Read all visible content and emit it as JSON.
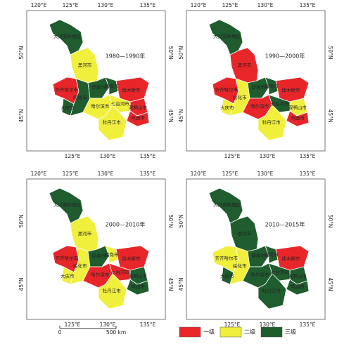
{
  "axes": {
    "top": [
      "120°E",
      "125°E",
      "130°E",
      "135°E"
    ],
    "bottom": [
      "125°E",
      "130°E",
      "135°E"
    ],
    "side": [
      "50°N",
      "45°N"
    ]
  },
  "panels": [
    {
      "period": "1980—1990年",
      "regions": [
        {
          "name": "大兴安岭地区",
          "level": "三级"
        },
        {
          "name": "黑河市",
          "level": "二级"
        },
        {
          "name": "齐齐哈尔市",
          "level": "一级"
        },
        {
          "name": "大庆市",
          "level": "三级"
        },
        {
          "name": "绥化市",
          "level": "三级"
        },
        {
          "name": "伊春市",
          "level": "三级"
        },
        {
          "name": "鹤岗市",
          "level": "三级"
        },
        {
          "name": "佳木斯市",
          "level": "一级"
        },
        {
          "name": "双鸭山市",
          "level": "一级"
        },
        {
          "name": "七台河市",
          "level": "二级"
        },
        {
          "name": "鸡西市",
          "level": "一级"
        },
        {
          "name": "哈尔滨市",
          "level": "二级"
        },
        {
          "name": "牡丹江市",
          "level": "二级"
        }
      ]
    },
    {
      "period": "1990—2000年",
      "regions": [
        {
          "name": "大兴安岭地区",
          "level": "三级"
        },
        {
          "name": "黑河市",
          "level": "一级"
        },
        {
          "name": "齐齐哈尔市",
          "level": "一级"
        },
        {
          "name": "大庆市",
          "level": "二级"
        },
        {
          "name": "绥化市",
          "level": "二级"
        },
        {
          "name": "伊春市",
          "level": "三级"
        },
        {
          "name": "鹤岗市",
          "level": "三级"
        },
        {
          "name": "佳木斯市",
          "level": "一级"
        },
        {
          "name": "双鸭山市",
          "level": "二级"
        },
        {
          "name": "七台河市",
          "level": "三级"
        },
        {
          "name": "鸡西市",
          "level": "一级"
        },
        {
          "name": "哈尔滨市",
          "level": "一级"
        },
        {
          "name": "牡丹江市",
          "level": "二级"
        }
      ]
    },
    {
      "period": "2000—2010年",
      "regions": [
        {
          "name": "大兴安岭地区",
          "level": "三级"
        },
        {
          "name": "黑河市",
          "level": "二级"
        },
        {
          "name": "齐齐哈尔市",
          "level": "一级"
        },
        {
          "name": "大庆市",
          "level": "二级"
        },
        {
          "name": "绥化市",
          "level": "二级"
        },
        {
          "name": "伊春市",
          "level": "三级"
        },
        {
          "name": "鹤岗市",
          "level": "二级"
        },
        {
          "name": "佳木斯市",
          "level": "一级"
        },
        {
          "name": "双鸭山市",
          "level": "三级"
        },
        {
          "name": "七台河市",
          "level": "一级"
        },
        {
          "name": "鸡西市",
          "level": "三级"
        },
        {
          "name": "哈尔滨市",
          "level": "一级"
        },
        {
          "name": "牡丹江市",
          "level": "二级"
        }
      ]
    },
    {
      "period": "2010—2015年",
      "regions": [
        {
          "name": "大兴安岭地区",
          "level": "三级"
        },
        {
          "name": "黑河市",
          "level": "三级"
        },
        {
          "name": "齐齐哈尔市",
          "level": "二级"
        },
        {
          "name": "大庆市",
          "level": "三级"
        },
        {
          "name": "绥化市",
          "level": "二级"
        },
        {
          "name": "伊春市",
          "level": "三级"
        },
        {
          "name": "鹤岗市",
          "level": "三级"
        },
        {
          "name": "佳木斯市",
          "level": "一级"
        },
        {
          "name": "双鸭山市",
          "level": "三级"
        },
        {
          "name": "七台河市",
          "level": "三级"
        },
        {
          "name": "鸡西市",
          "level": "三级"
        },
        {
          "name": "哈尔滨市",
          "level": "三级"
        },
        {
          "name": "牡丹江市",
          "level": "三级"
        }
      ]
    }
  ],
  "scalebar": {
    "start": "0",
    "end": "500 km"
  },
  "legend": [
    {
      "label": "一级",
      "color": "#e8262a"
    },
    {
      "label": "二级",
      "color": "#f0ef3c"
    },
    {
      "label": "三级",
      "color": "#1f5c2e"
    }
  ]
}
